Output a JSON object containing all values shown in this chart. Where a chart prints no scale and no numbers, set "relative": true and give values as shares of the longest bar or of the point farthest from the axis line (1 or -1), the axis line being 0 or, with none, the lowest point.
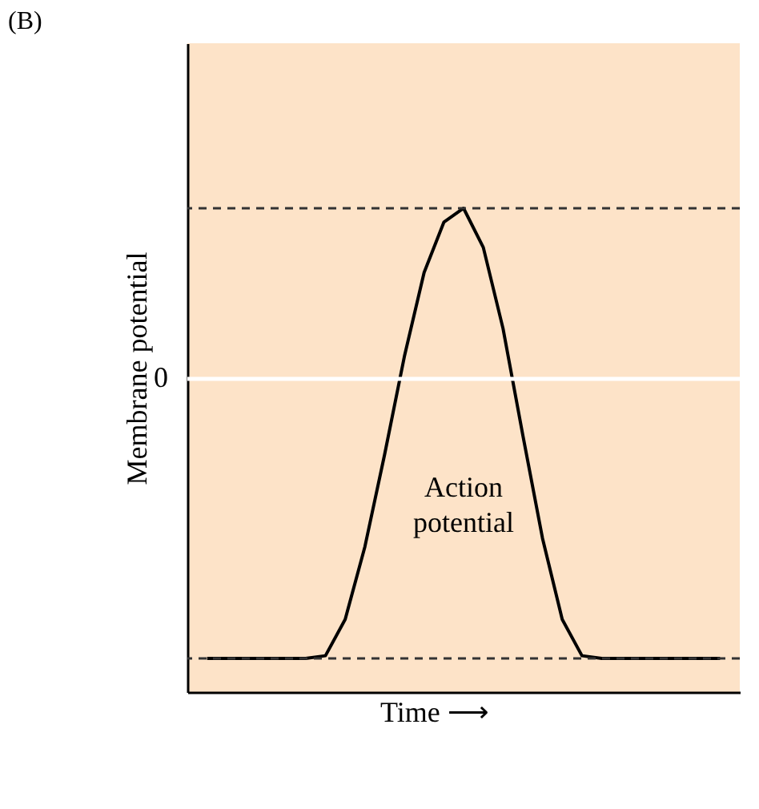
{
  "chart_data": {
    "type": "line",
    "title": "(B)",
    "xlabel": "Time ⟶",
    "ylabel": "Membrane potential",
    "relative": true,
    "categories": [
      null,
      null,
      null,
      null,
      null,
      null,
      null,
      null,
      null,
      null,
      null,
      null,
      null,
      null,
      null,
      null,
      null,
      null,
      null,
      null,
      null,
      null,
      null,
      null,
      null,
      null,
      null
    ],
    "series": [
      {
        "color": "#000000",
        "values": [
          -1,
          -1,
          -1,
          -1,
          -1,
          -1,
          -0.99,
          -0.86,
          -0.6,
          -0.27,
          0.08,
          0.38,
          0.56,
          0.61,
          0.47,
          0.18,
          -0.2,
          -0.57,
          -0.86,
          -0.99,
          -1,
          -1,
          -1,
          -1,
          -1,
          -1,
          -1
        ]
      }
    ],
    "ref_lines": [
      {
        "axis": "y",
        "value": 0.61,
        "color": "#333333",
        "line_style": "dashed"
      },
      {
        "axis": "y",
        "value": -1,
        "color": "#333333",
        "line_style": "dashed"
      },
      {
        "axis": "y",
        "value": 0,
        "color": "#ffffff",
        "line_style": "solid"
      }
    ],
    "annotations": [
      "0",
      "Action potential"
    ],
    "marker": "none",
    "grid": false
  }
}
